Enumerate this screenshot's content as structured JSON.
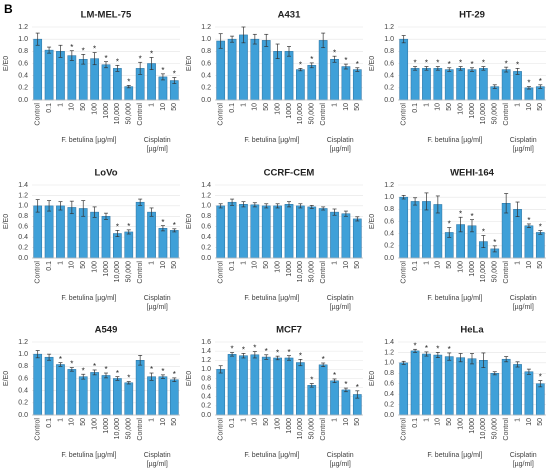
{
  "panel_label": "B",
  "chart_data": [
    {
      "type": "bar",
      "title": "LM-MEL-75",
      "ylabel": "E/E0",
      "categories": [
        "Control",
        "0.1",
        "1",
        "10",
        "50",
        "100",
        "1000",
        "10,000",
        "50,000",
        "Control",
        "1",
        "10",
        "50"
      ],
      "x_group_labels": [
        [
          "F. betulina [µg/ml]"
        ],
        [
          "Cisplatin",
          "[µg/ml]"
        ]
      ],
      "values": [
        1.0,
        0.82,
        0.8,
        0.73,
        0.67,
        0.68,
        0.58,
        0.52,
        0.22,
        0.52,
        0.6,
        0.38,
        0.32
      ],
      "errors": [
        0.1,
        0.05,
        0.1,
        0.08,
        0.08,
        0.1,
        0.05,
        0.05,
        0.02,
        0.1,
        0.1,
        0.05,
        0.05
      ],
      "annotations": [
        null,
        null,
        null,
        "*",
        "*",
        "*",
        "*",
        "*",
        "*",
        "*",
        "*",
        "*",
        "*"
      ],
      "color": "#3fa0d8",
      "ylim": [
        0,
        1.2
      ],
      "yticks": [
        {
          "value": 0,
          "label": "0.0"
        },
        0.2,
        0.4,
        0.6,
        0.8,
        {
          "value": 1,
          "label": "1.0"
        },
        1.2
      ],
      "grid": true
    },
    {
      "type": "bar",
      "title": "A431",
      "ylabel": "E/E0",
      "categories": [
        "Control",
        "0.1",
        "1",
        "10",
        "50",
        "100",
        "1000",
        "10,000",
        "50,000",
        "Control",
        "1",
        "10",
        "50"
      ],
      "x_group_labels": [
        [
          "F. betulina [µg/ml]"
        ],
        [
          "Cisplatin",
          "[µg/ml]"
        ]
      ],
      "values": [
        0.97,
        1.0,
        1.07,
        1.0,
        0.98,
        0.8,
        0.8,
        0.5,
        0.57,
        0.98,
        0.67,
        0.55,
        0.5
      ],
      "errors": [
        0.12,
        0.05,
        0.13,
        0.08,
        0.1,
        0.12,
        0.08,
        0.02,
        0.04,
        0.12,
        0.05,
        0.04,
        0.03
      ],
      "annotations": [
        null,
        null,
        null,
        null,
        null,
        null,
        null,
        "*",
        "*",
        null,
        "*",
        "*",
        "*"
      ],
      "color": "#3fa0d8",
      "ylim": [
        0,
        1.2
      ],
      "yticks": [
        {
          "value": 0,
          "label": "0.0"
        },
        0.2,
        0.4,
        0.6,
        0.8,
        {
          "value": 1,
          "label": "1.0"
        },
        1.2
      ],
      "grid": true
    },
    {
      "type": "bar",
      "title": "HT-29",
      "ylabel": "E/E0",
      "categories": [
        "Control",
        "0.1",
        "1",
        "10",
        "50",
        "100",
        "1000",
        "10,000",
        "50,000",
        "Control",
        "1",
        "10",
        "50"
      ],
      "x_group_labels": [
        [
          "F. betulina [µg/ml]"
        ],
        [
          "Cisplatin",
          "[µg/ml]"
        ]
      ],
      "values": [
        1.0,
        0.52,
        0.52,
        0.52,
        0.5,
        0.52,
        0.5,
        0.52,
        0.22,
        0.5,
        0.47,
        0.2,
        0.22
      ],
      "errors": [
        0.06,
        0.03,
        0.03,
        0.03,
        0.03,
        0.03,
        0.03,
        0.03,
        0.03,
        0.04,
        0.05,
        0.02,
        0.03
      ],
      "annotations": [
        null,
        "*",
        "*",
        "*",
        "*",
        "*",
        "*",
        "*",
        null,
        "*",
        "*",
        "*",
        "*"
      ],
      "color": "#3fa0d8",
      "ylim": [
        0,
        1.2
      ],
      "yticks": [
        {
          "value": 0,
          "label": "0.0"
        },
        0.2,
        0.4,
        0.6,
        0.8,
        {
          "value": 1,
          "label": "1.0"
        },
        1.2
      ],
      "grid": true
    },
    {
      "type": "bar",
      "title": "LoVo",
      "ylabel": "E/E0",
      "categories": [
        "Control",
        "0.1",
        "1",
        "10",
        "50",
        "100",
        "1000",
        "10,000",
        "50,000",
        "Control",
        "1",
        "10",
        "50"
      ],
      "x_group_labels": [
        [
          "F. betulina [µg/ml]"
        ],
        [
          "Cisplatin",
          "[µg/ml]"
        ]
      ],
      "values": [
        1.0,
        1.0,
        1.0,
        0.97,
        0.95,
        0.88,
        0.8,
        0.47,
        0.5,
        1.07,
        0.88,
        0.57,
        0.53
      ],
      "errors": [
        0.12,
        0.1,
        0.08,
        0.12,
        0.15,
        0.1,
        0.06,
        0.06,
        0.04,
        0.06,
        0.08,
        0.05,
        0.03
      ],
      "annotations": [
        null,
        null,
        null,
        null,
        null,
        null,
        null,
        "*",
        "*",
        null,
        null,
        "*",
        "*"
      ],
      "color": "#3fa0d8",
      "ylim": [
        0,
        1.4
      ],
      "yticks": [
        {
          "value": 0,
          "label": "0.0"
        },
        0.2,
        0.4,
        0.6,
        0.8,
        {
          "value": 1,
          "label": "1.0"
        },
        1.2,
        1.4
      ],
      "grid": true
    },
    {
      "type": "bar",
      "title": "CCRF-CEM",
      "ylabel": "E/E0",
      "categories": [
        "Control",
        "0.1",
        "1",
        "10",
        "50",
        "100",
        "1000",
        "10,000",
        "50,000",
        "Control",
        "1",
        "10",
        "50"
      ],
      "x_group_labels": [
        [
          "F. betulina [µg/ml]"
        ],
        [
          "Cisplatin",
          "[µg/ml]"
        ]
      ],
      "values": [
        1.0,
        1.07,
        1.03,
        1.02,
        1.0,
        1.0,
        1.03,
        1.0,
        0.98,
        0.95,
        0.88,
        0.85,
        0.75
      ],
      "errors": [
        0.04,
        0.06,
        0.05,
        0.04,
        0.04,
        0.04,
        0.05,
        0.04,
        0.03,
        0.03,
        0.06,
        0.05,
        0.04
      ],
      "annotations": [
        null,
        null,
        null,
        null,
        null,
        null,
        null,
        null,
        null,
        null,
        null,
        null,
        null
      ],
      "color": "#3fa0d8",
      "ylim": [
        0,
        1.4
      ],
      "yticks": [
        {
          "value": 0,
          "label": "0.0"
        },
        0.2,
        0.4,
        0.6,
        0.8,
        {
          "value": 1,
          "label": "1.0"
        },
        1.2,
        1.4
      ],
      "grid": true
    },
    {
      "type": "bar",
      "title": "WEHI-164",
      "ylabel": "E/E0",
      "categories": [
        "Control",
        "0.1",
        "1",
        "10",
        "50",
        "100",
        "1000",
        "10,000",
        "50,000",
        "Control",
        "1",
        "10",
        "50"
      ],
      "x_group_labels": [
        [
          "F. betulina [µg/ml]"
        ],
        [
          "Cisplatin",
          "[µg/ml]"
        ]
      ],
      "values": [
        1.0,
        0.93,
        0.93,
        0.88,
        0.42,
        0.55,
        0.53,
        0.27,
        0.15,
        0.9,
        0.8,
        0.53,
        0.42
      ],
      "errors": [
        0.03,
        0.06,
        0.14,
        0.14,
        0.08,
        0.12,
        0.1,
        0.1,
        0.05,
        0.16,
        0.12,
        0.03,
        0.03
      ],
      "annotations": [
        null,
        null,
        null,
        null,
        "*",
        "*",
        "*",
        "*",
        "*",
        null,
        null,
        "*",
        "*"
      ],
      "color": "#3fa0d8",
      "ylim": [
        0,
        1.2
      ],
      "yticks": [
        {
          "value": 0,
          "label": "0.0"
        },
        0.2,
        0.4,
        0.6,
        0.8,
        {
          "value": 1,
          "label": "1.0"
        },
        1.2
      ],
      "grid": true
    },
    {
      "type": "bar",
      "title": "A549",
      "ylabel": "E/E0",
      "categories": [
        "Control",
        "0.1",
        "1",
        "10",
        "50",
        "100",
        "1000",
        "10,000",
        "50,000",
        "Control",
        "1",
        "10",
        "50"
      ],
      "x_group_labels": [
        [
          "F. betulina [µg/ml]"
        ],
        [
          "Cisplatin",
          "[µg/ml]"
        ]
      ],
      "values": [
        1.0,
        0.95,
        0.83,
        0.75,
        0.63,
        0.7,
        0.65,
        0.6,
        0.53,
        0.9,
        0.63,
        0.63,
        0.58
      ],
      "errors": [
        0.06,
        0.05,
        0.03,
        0.03,
        0.04,
        0.04,
        0.04,
        0.03,
        0.02,
        0.08,
        0.06,
        0.03,
        0.03
      ],
      "annotations": [
        null,
        null,
        "*",
        "*",
        "*",
        "*",
        "*",
        "*",
        "*",
        null,
        "*",
        "*",
        "*"
      ],
      "color": "#3fa0d8",
      "ylim": [
        0,
        1.2
      ],
      "yticks": [
        {
          "value": 0,
          "label": "0.0"
        },
        0.2,
        0.4,
        0.6,
        0.8,
        {
          "value": 1,
          "label": "1.0"
        },
        1.2
      ],
      "grid": true
    },
    {
      "type": "bar",
      "title": "MCF7",
      "ylabel": "E/E0",
      "categories": [
        "Control",
        "0.1",
        "1",
        "10",
        "50",
        "100",
        "1000",
        "10,000",
        "50,000",
        "Control",
        "1",
        "10",
        "50"
      ],
      "x_group_labels": [
        [
          "F. betulina [µg/ml]"
        ],
        [
          "Cisplatin",
          "[µg/ml]"
        ]
      ],
      "values": [
        1.0,
        1.33,
        1.3,
        1.32,
        1.27,
        1.25,
        1.25,
        1.15,
        0.65,
        1.1,
        0.75,
        0.55,
        0.45
      ],
      "errors": [
        0.08,
        0.04,
        0.05,
        0.07,
        0.05,
        0.04,
        0.05,
        0.07,
        0.04,
        0.04,
        0.04,
        0.04,
        0.08
      ],
      "annotations": [
        null,
        "*",
        "*",
        "*",
        "*",
        "*",
        "*",
        "*",
        "*",
        "*",
        "*",
        "*",
        "*"
      ],
      "color": "#3fa0d8",
      "ylim": [
        0,
        1.6
      ],
      "yticks": [
        {
          "value": 0,
          "label": "0.0"
        },
        0.2,
        0.4,
        0.6,
        0.8,
        {
          "value": 1,
          "label": "1.0"
        },
        1.2,
        1.4,
        1.6
      ],
      "grid": true
    },
    {
      "type": "bar",
      "title": "HeLa",
      "ylabel": "E/E0",
      "categories": [
        "Control",
        "0.1",
        "1",
        "10",
        "50",
        "100",
        "1000",
        "10,000",
        "50,000",
        "Control",
        "1",
        "10",
        "50"
      ],
      "x_group_labels": [
        [
          "F. betulina [µg/ml]"
        ],
        [
          "Cisplatin",
          "[µg/ml]"
        ]
      ],
      "values": [
        1.0,
        1.23,
        1.17,
        1.15,
        1.12,
        1.1,
        1.08,
        1.05,
        0.8,
        1.07,
        0.97,
        0.83,
        0.6
      ],
      "errors": [
        0.03,
        0.03,
        0.04,
        0.05,
        0.07,
        0.08,
        0.1,
        0.14,
        0.03,
        0.05,
        0.05,
        0.05,
        0.06
      ],
      "annotations": [
        null,
        "*",
        "*",
        "*",
        "*",
        null,
        null,
        null,
        null,
        null,
        null,
        null,
        "*"
      ],
      "color": "#3fa0d8",
      "ylim": [
        0,
        1.4
      ],
      "yticks": [
        {
          "value": 0,
          "label": "0.0"
        },
        0.2,
        0.4,
        0.6,
        0.8,
        {
          "value": 1,
          "label": "1.0"
        },
        1.2,
        1.4
      ],
      "grid": true
    }
  ]
}
